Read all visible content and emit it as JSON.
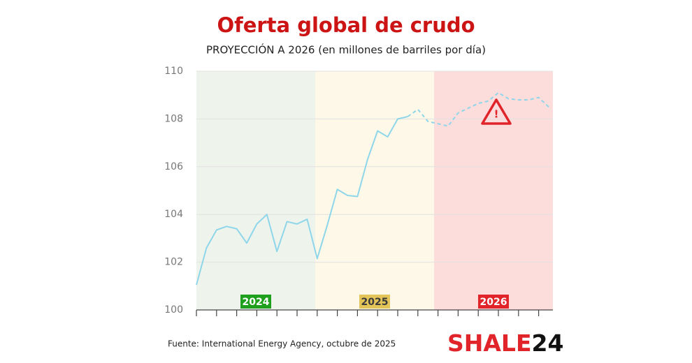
{
  "chart_data": {
    "type": "line",
    "title": "Oferta global de crudo",
    "subtitle": "PROYECCIÓN A 2026 (en millones de barriles por día)",
    "categories": [
      null,
      null,
      null,
      null,
      null,
      null,
      null,
      null,
      null,
      null,
      null,
      null,
      null,
      null,
      null,
      null,
      null,
      null,
      null,
      null,
      null,
      null,
      null,
      null,
      null,
      null,
      null,
      null,
      null,
      null,
      null,
      null,
      null,
      null,
      null,
      null
    ],
    "periods": [
      {
        "label": "2024",
        "color": "#eef3ec",
        "label_bg": "#1ea01e",
        "label_color": "#ffffff"
      },
      {
        "label": "2025",
        "color": "#fdf8e7",
        "label_bg": "#e3c458",
        "label_color": "#3a3a3a"
      },
      {
        "label": "2026",
        "color": "#fddcdc",
        "label_bg": "#e0242a",
        "label_color": "#ffffff"
      }
    ],
    "series": [
      {
        "color": "#8fd6ea",
        "dashed": false,
        "values": [
          101.05,
          102.6,
          103.35,
          103.5,
          103.4,
          102.8,
          103.6,
          104.0,
          102.45,
          103.7,
          103.6,
          103.8,
          102.15,
          103.55,
          105.05,
          104.8,
          104.75,
          106.3,
          107.5,
          107.25,
          108.0,
          108.1,
          null,
          null,
          null,
          null,
          null,
          null,
          null,
          null,
          null,
          null,
          null,
          null,
          null,
          null
        ]
      },
      {
        "color": "#8fd6ea",
        "dashed": true,
        "values": [
          null,
          null,
          null,
          null,
          null,
          null,
          null,
          null,
          null,
          null,
          null,
          null,
          null,
          null,
          null,
          null,
          null,
          null,
          null,
          null,
          null,
          108.1,
          108.4,
          107.9,
          107.8,
          107.7,
          108.25,
          108.45,
          108.65,
          108.75,
          109.1,
          108.85,
          108.8,
          108.8,
          108.9,
          108.5
        ]
      }
    ],
    "ylim": [
      100,
      110
    ],
    "yticks": [
      100,
      102,
      104,
      106,
      108,
      110
    ],
    "grid": true,
    "source": "Fuente: International Energy Agency, octubre de 2025",
    "logo": {
      "part1": "SHALE",
      "part2": "24"
    }
  }
}
